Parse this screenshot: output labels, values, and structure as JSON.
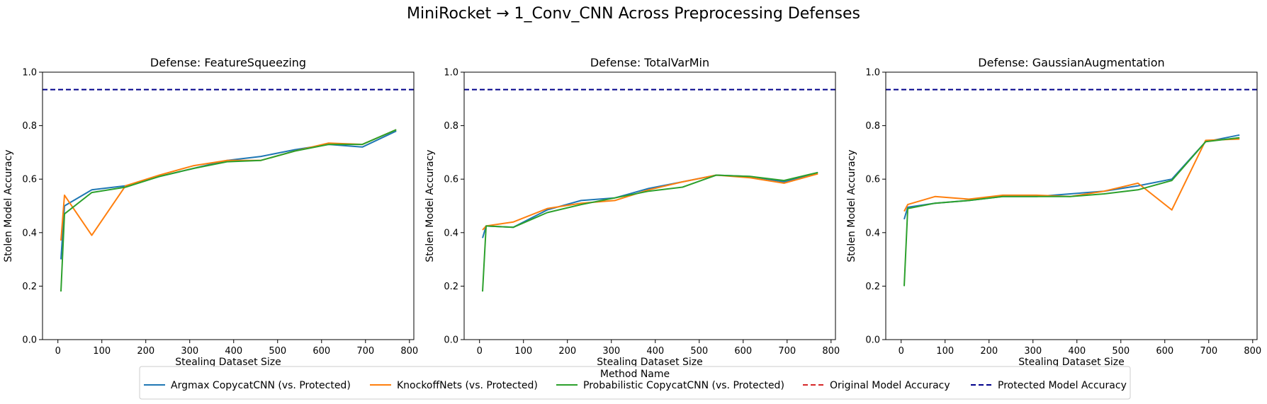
{
  "figure": {
    "suptitle": "MiniRocket → 1_Conv_CNN Across Preprocessing Defenses"
  },
  "legend": {
    "title": "Method Name",
    "placement": "lower center",
    "entries": [
      {
        "label": "Argmax CopycatCNN (vs. Protected)",
        "color": "#1f77b4",
        "style": "solid"
      },
      {
        "label": "KnockoffNets (vs. Protected)",
        "color": "#ff7f0e",
        "style": "solid"
      },
      {
        "label": "Probabilistic CopycatCNN (vs. Protected)",
        "color": "#2ca02c",
        "style": "solid"
      },
      {
        "label": "Original Model Accuracy",
        "color": "#d62728",
        "style": "dashed"
      },
      {
        "label": "Protected Model Accuracy",
        "color": "#00008b",
        "style": "dashed"
      }
    ]
  },
  "chart_data": [
    {
      "type": "line",
      "title": "Defense: FeatureSqueezing",
      "xlabel": "Stealing Dataset Size",
      "ylabel": "Stolen Model Accuracy",
      "xlim": [
        -35,
        810
      ],
      "ylim": [
        0,
        1.0
      ],
      "xticks": [
        0,
        100,
        200,
        300,
        400,
        500,
        600,
        700,
        800
      ],
      "yticks": [
        0.0,
        0.2,
        0.4,
        0.6,
        0.8,
        1.0
      ],
      "grid": false,
      "hlines": [
        {
          "name": "Protected Model Accuracy",
          "y": 0.935,
          "color": "#00008b"
        }
      ],
      "series": [
        {
          "name": "Argmax CopycatCNN (vs. Protected)",
          "color": "#1f77b4",
          "x": [
            7,
            15,
            77,
            154,
            231,
            308,
            385,
            462,
            539,
            616,
            693,
            770
          ],
          "y": [
            0.3,
            0.5,
            0.56,
            0.575,
            0.61,
            0.64,
            0.67,
            0.685,
            0.71,
            0.73,
            0.72,
            0.78
          ]
        },
        {
          "name": "KnockoffNets (vs. Protected)",
          "color": "#ff7f0e",
          "x": [
            7,
            15,
            77,
            154,
            231,
            308,
            385,
            462,
            539,
            616,
            693,
            770
          ],
          "y": [
            0.37,
            0.54,
            0.39,
            0.575,
            0.615,
            0.65,
            0.67,
            0.67,
            0.705,
            0.735,
            0.73,
            0.785
          ]
        },
        {
          "name": "Probabilistic CopycatCNN (vs. Protected)",
          "color": "#2ca02c",
          "x": [
            7,
            15,
            77,
            154,
            231,
            308,
            385,
            462,
            539,
            616,
            693,
            770
          ],
          "y": [
            0.18,
            0.47,
            0.55,
            0.57,
            0.61,
            0.64,
            0.665,
            0.67,
            0.705,
            0.73,
            0.73,
            0.785
          ]
        }
      ]
    },
    {
      "type": "line",
      "title": "Defense: TotalVarMin",
      "xlabel": "Stealing Dataset Size",
      "ylabel": "Stolen Model Accuracy",
      "xlim": [
        -35,
        810
      ],
      "ylim": [
        0,
        1.0
      ],
      "xticks": [
        0,
        100,
        200,
        300,
        400,
        500,
        600,
        700,
        800
      ],
      "yticks": [
        0.0,
        0.2,
        0.4,
        0.6,
        0.8,
        1.0
      ],
      "grid": false,
      "hlines": [
        {
          "name": "Protected Model Accuracy",
          "y": 0.935,
          "color": "#00008b"
        }
      ],
      "series": [
        {
          "name": "Argmax CopycatCNN (vs. Protected)",
          "color": "#1f77b4",
          "x": [
            7,
            15,
            77,
            154,
            231,
            308,
            385,
            462,
            539,
            616,
            693,
            770
          ],
          "y": [
            0.38,
            0.425,
            0.42,
            0.485,
            0.52,
            0.53,
            0.565,
            0.59,
            0.615,
            0.61,
            0.59,
            0.625
          ]
        },
        {
          "name": "KnockoffNets (vs. Protected)",
          "color": "#ff7f0e",
          "x": [
            7,
            15,
            77,
            154,
            231,
            308,
            385,
            462,
            539,
            616,
            693,
            770
          ],
          "y": [
            0.41,
            0.425,
            0.44,
            0.49,
            0.51,
            0.52,
            0.56,
            0.59,
            0.615,
            0.605,
            0.585,
            0.62
          ]
        },
        {
          "name": "Probabilistic CopycatCNN (vs. Protected)",
          "color": "#2ca02c",
          "x": [
            7,
            15,
            77,
            154,
            231,
            308,
            385,
            462,
            539,
            616,
            693,
            770
          ],
          "y": [
            0.18,
            0.425,
            0.42,
            0.475,
            0.505,
            0.53,
            0.555,
            0.57,
            0.615,
            0.61,
            0.595,
            0.625
          ]
        }
      ]
    },
    {
      "type": "line",
      "title": "Defense: GaussianAugmentation",
      "xlabel": "Stealing Dataset Size",
      "ylabel": "Stolen Model Accuracy",
      "xlim": [
        -35,
        810
      ],
      "ylim": [
        0,
        1.0
      ],
      "xticks": [
        0,
        100,
        200,
        300,
        400,
        500,
        600,
        700,
        800
      ],
      "yticks": [
        0.0,
        0.2,
        0.4,
        0.6,
        0.8,
        1.0
      ],
      "grid": false,
      "hlines": [
        {
          "name": "Protected Model Accuracy",
          "y": 0.935,
          "color": "#00008b"
        }
      ],
      "series": [
        {
          "name": "Argmax CopycatCNN (vs. Protected)",
          "color": "#1f77b4",
          "x": [
            7,
            15,
            77,
            154,
            231,
            308,
            385,
            462,
            539,
            616,
            693,
            770
          ],
          "y": [
            0.45,
            0.495,
            0.51,
            0.52,
            0.535,
            0.535,
            0.545,
            0.555,
            0.575,
            0.6,
            0.74,
            0.765
          ]
        },
        {
          "name": "KnockoffNets (vs. Protected)",
          "color": "#ff7f0e",
          "x": [
            7,
            15,
            77,
            154,
            231,
            308,
            385,
            462,
            539,
            616,
            693,
            770
          ],
          "y": [
            0.48,
            0.505,
            0.535,
            0.525,
            0.54,
            0.54,
            0.535,
            0.555,
            0.585,
            0.485,
            0.745,
            0.75
          ]
        },
        {
          "name": "Probabilistic CopycatCNN (vs. Protected)",
          "color": "#2ca02c",
          "x": [
            7,
            15,
            77,
            154,
            231,
            308,
            385,
            462,
            539,
            616,
            693,
            770
          ],
          "y": [
            0.2,
            0.49,
            0.51,
            0.52,
            0.535,
            0.535,
            0.535,
            0.545,
            0.56,
            0.595,
            0.74,
            0.755
          ]
        }
      ]
    }
  ]
}
